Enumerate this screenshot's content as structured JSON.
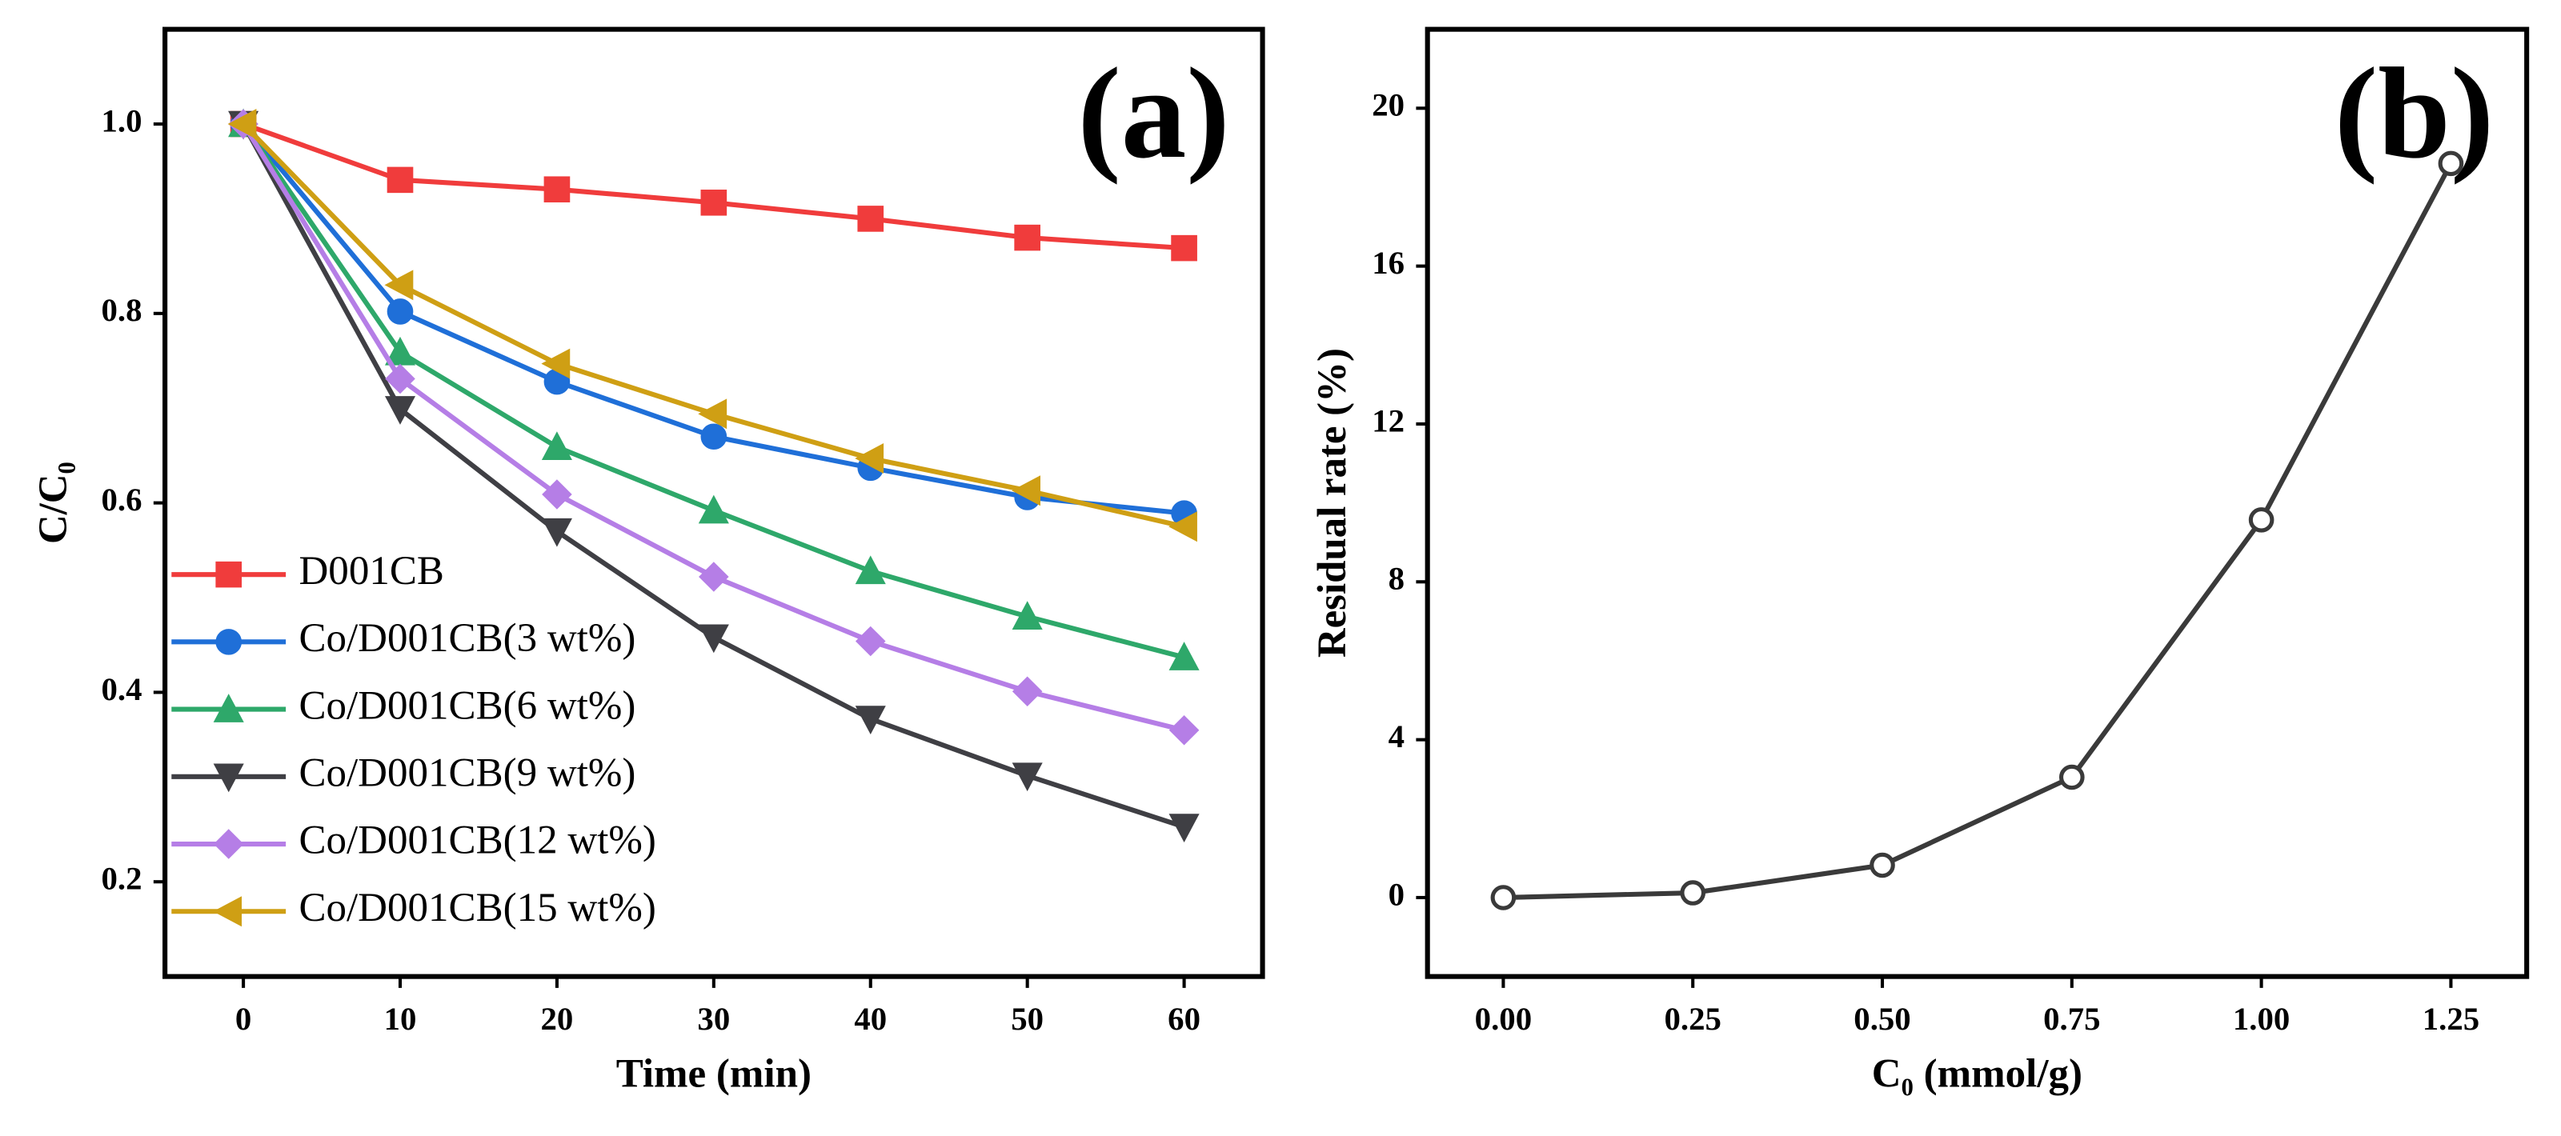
{
  "chart_data": [
    {
      "type": "line",
      "annotation": "(a)",
      "xlabel": "Time (min)",
      "ylabel": "C/C₀",
      "x": [
        0,
        10,
        20,
        30,
        40,
        50,
        60
      ],
      "xlim": [
        -5,
        65
      ],
      "xticks": [
        0,
        10,
        20,
        30,
        40,
        50,
        60
      ],
      "ylim": [
        0.1,
        1.1
      ],
      "yticks": [
        {
          "value": 0.2,
          "label": "0.2"
        },
        {
          "value": 0.4,
          "label": "0.4"
        },
        {
          "value": 0.6,
          "label": "0.6"
        },
        {
          "value": 0.8,
          "label": "0.8"
        },
        {
          "value": 1.0,
          "label": "1.0"
        }
      ],
      "legend": "lower left",
      "series": [
        {
          "name": "D001CB",
          "color": "#f03c3c",
          "marker": "square",
          "values": [
            1.0,
            0.941,
            0.931,
            0.917,
            0.9,
            0.88,
            0.869
          ]
        },
        {
          "name": "Co/D001CB(3 wt%)",
          "color": "#1f6fd8",
          "marker": "circle",
          "values": [
            1.0,
            0.802,
            0.728,
            0.67,
            0.637,
            0.606,
            0.589
          ]
        },
        {
          "name": "Co/D001CB(6 wt%)",
          "color": "#2ea86a",
          "marker": "triangle-up",
          "values": [
            1.0,
            0.759,
            0.659,
            0.592,
            0.528,
            0.48,
            0.437
          ]
        },
        {
          "name": "Co/D001CB(9 wt%)",
          "color": "#3f3f44",
          "marker": "triangle-down",
          "values": [
            1.0,
            0.699,
            0.57,
            0.458,
            0.372,
            0.312,
            0.258
          ]
        },
        {
          "name": "Co/D001CB(12 wt%)",
          "color": "#b57ee6",
          "marker": "diamond",
          "values": [
            1.0,
            0.731,
            0.609,
            0.522,
            0.454,
            0.401,
            0.36
          ]
        },
        {
          "name": "Co/D001CB(15 wt%)",
          "color": "#cf9f14",
          "marker": "triangle-left",
          "values": [
            1.0,
            0.83,
            0.747,
            0.694,
            0.647,
            0.613,
            0.575
          ]
        }
      ]
    },
    {
      "type": "line",
      "annotation": "(b)",
      "xlabel": "C₀ (mmol/g)",
      "ylabel": "Residual rate (%)",
      "x": [
        0,
        0.25,
        0.5,
        0.75,
        1.0,
        1.25
      ],
      "xlim": [
        -0.1,
        1.35
      ],
      "xticks": [
        {
          "value": 0,
          "label": "0.00"
        },
        {
          "value": 0.25,
          "label": "0.25"
        },
        {
          "value": 0.5,
          "label": "0.50"
        },
        {
          "value": 0.75,
          "label": "0.75"
        },
        {
          "value": 1.0,
          "label": "1.00"
        },
        {
          "value": 1.25,
          "label": "1.25"
        }
      ],
      "ylim": [
        -2,
        22
      ],
      "yticks": [
        0,
        4,
        8,
        12,
        16,
        20
      ],
      "series": [
        {
          "color": "#3a3a3a",
          "marker": "open-circle",
          "values": [
            0,
            0.12,
            0.82,
            3.05,
            9.57,
            18.6
          ]
        }
      ]
    }
  ]
}
